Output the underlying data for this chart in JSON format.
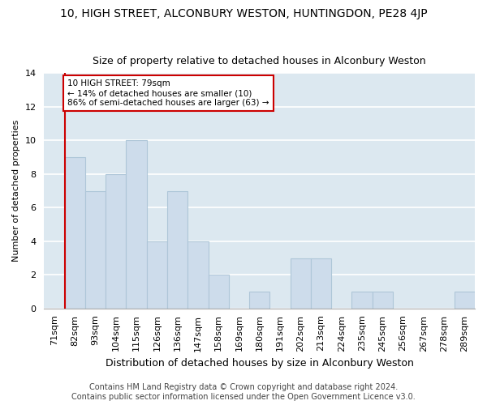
{
  "title1": "10, HIGH STREET, ALCONBURY WESTON, HUNTINGDON, PE28 4JP",
  "title2": "Size of property relative to detached houses in Alconbury Weston",
  "xlabel": "Distribution of detached houses by size in Alconbury Weston",
  "ylabel": "Number of detached properties",
  "categories": [
    "71sqm",
    "82sqm",
    "93sqm",
    "104sqm",
    "115sqm",
    "126sqm",
    "136sqm",
    "147sqm",
    "158sqm",
    "169sqm",
    "180sqm",
    "191sqm",
    "202sqm",
    "213sqm",
    "224sqm",
    "235sqm",
    "245sqm",
    "256sqm",
    "267sqm",
    "278sqm",
    "289sqm"
  ],
  "values": [
    0,
    9,
    7,
    8,
    10,
    4,
    7,
    4,
    2,
    0,
    1,
    0,
    3,
    3,
    0,
    1,
    1,
    0,
    0,
    0,
    1
  ],
  "bar_color": "#cddceb",
  "bar_edge_color": "#aec6d8",
  "annotation_text": "10 HIGH STREET: 79sqm\n← 14% of detached houses are smaller (10)\n86% of semi-detached houses are larger (63) →",
  "annotation_box_color": "#ffffff",
  "annotation_box_edge_color": "#cc0000",
  "property_line_color": "#cc0000",
  "property_line_x": 0.5,
  "footer_text": "Contains HM Land Registry data © Crown copyright and database right 2024.\nContains public sector information licensed under the Open Government Licence v3.0.",
  "ylim": [
    0,
    14
  ],
  "background_color": "#dce8f0",
  "grid_color": "#ffffff",
  "title1_fontsize": 10,
  "title2_fontsize": 9,
  "xlabel_fontsize": 9,
  "ylabel_fontsize": 8,
  "tick_fontsize": 8,
  "footer_fontsize": 7
}
